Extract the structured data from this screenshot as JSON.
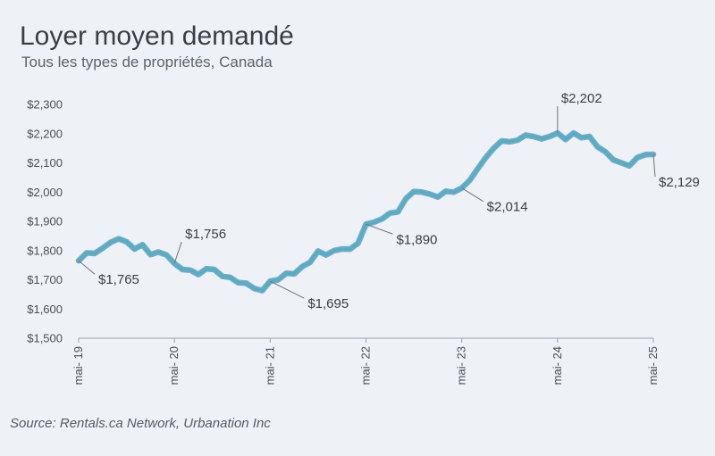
{
  "title": "Loyer moyen demandé",
  "subtitle": "Tous les types de propriétés, Canada",
  "source": "Source: Rentals.ca Network, Urbanation Inc",
  "colors": {
    "line": "#49b3cf",
    "line_outline": "#8fa4b3",
    "background": "#eef1f5"
  },
  "chart_data": {
    "type": "line",
    "title": "Loyer moyen demandé",
    "subtitle": "Tous les types de propriétés, Canada",
    "xlabel": "",
    "ylabel": "",
    "ylim": [
      1500,
      2300
    ],
    "y_ticks": [
      1500,
      1600,
      1700,
      1800,
      1900,
      2000,
      2100,
      2200,
      2300
    ],
    "y_tick_labels": [
      "$1,500",
      "$1,600",
      "$1,700",
      "$1,800",
      "$1,900",
      "$2,000",
      "$2,100",
      "$2,200",
      "$2,300"
    ],
    "x_tick_labels": [
      "mai- 19",
      "mai- 20",
      "mai- 21",
      "mai- 22",
      "mai- 23",
      "mai- 24",
      "mai- 25"
    ],
    "x_tick_months": [
      "2019-05",
      "2020-05",
      "2021-05",
      "2022-05",
      "2023-05",
      "2024-05",
      "2025-05"
    ],
    "grid": false,
    "legend": "none",
    "series": [
      {
        "months": [
          "2019-05",
          "2019-06",
          "2019-07",
          "2019-08",
          "2019-09",
          "2019-10",
          "2019-11",
          "2019-12",
          "2020-01",
          "2020-02",
          "2020-03",
          "2020-04",
          "2020-05",
          "2020-06",
          "2020-07",
          "2020-08",
          "2020-09",
          "2020-10",
          "2020-11",
          "2020-12",
          "2021-01",
          "2021-02",
          "2021-03",
          "2021-04",
          "2021-05",
          "2021-06",
          "2021-07",
          "2021-08",
          "2021-09",
          "2021-10",
          "2021-11",
          "2021-12",
          "2022-01",
          "2022-02",
          "2022-03",
          "2022-04",
          "2022-05",
          "2022-06",
          "2022-07",
          "2022-08",
          "2022-09",
          "2022-10",
          "2022-11",
          "2022-12",
          "2023-01",
          "2023-02",
          "2023-03",
          "2023-04",
          "2023-05",
          "2023-06",
          "2023-07",
          "2023-08",
          "2023-09",
          "2023-10",
          "2023-11",
          "2023-12",
          "2024-01",
          "2024-02",
          "2024-03",
          "2024-04",
          "2024-05",
          "2024-06",
          "2024-07",
          "2024-08",
          "2024-09",
          "2024-10",
          "2024-11",
          "2024-12",
          "2025-01",
          "2025-02",
          "2025-03",
          "2025-04",
          "2025-05"
        ],
        "values": [
          1765,
          1792,
          1790,
          1808,
          1828,
          1840,
          1830,
          1805,
          1820,
          1786,
          1795,
          1785,
          1756,
          1735,
          1733,
          1718,
          1738,
          1735,
          1712,
          1708,
          1690,
          1688,
          1670,
          1663,
          1695,
          1700,
          1722,
          1720,
          1745,
          1760,
          1798,
          1785,
          1800,
          1805,
          1805,
          1825,
          1890,
          1897,
          1908,
          1928,
          1932,
          1978,
          2002,
          2000,
          1993,
          1983,
          2003,
          2000,
          2014,
          2040,
          2080,
          2118,
          2150,
          2175,
          2172,
          2178,
          2195,
          2190,
          2182,
          2190,
          2202,
          2180,
          2202,
          2186,
          2190,
          2155,
          2138,
          2110,
          2100,
          2090,
          2118,
          2128,
          2129
        ]
      }
    ],
    "annotations": [
      {
        "month": "2019-05",
        "value": 1765,
        "label": "$1,765"
      },
      {
        "month": "2020-05",
        "value": 1756,
        "label": "$1,756"
      },
      {
        "month": "2021-05",
        "value": 1695,
        "label": "$1,695"
      },
      {
        "month": "2022-05",
        "value": 1890,
        "label": "$1,890"
      },
      {
        "month": "2023-05",
        "value": 2014,
        "label": "$2,014"
      },
      {
        "month": "2024-05",
        "value": 2202,
        "label": "$2,202"
      },
      {
        "month": "2025-05",
        "value": 2129,
        "label": "$2,129"
      }
    ]
  }
}
